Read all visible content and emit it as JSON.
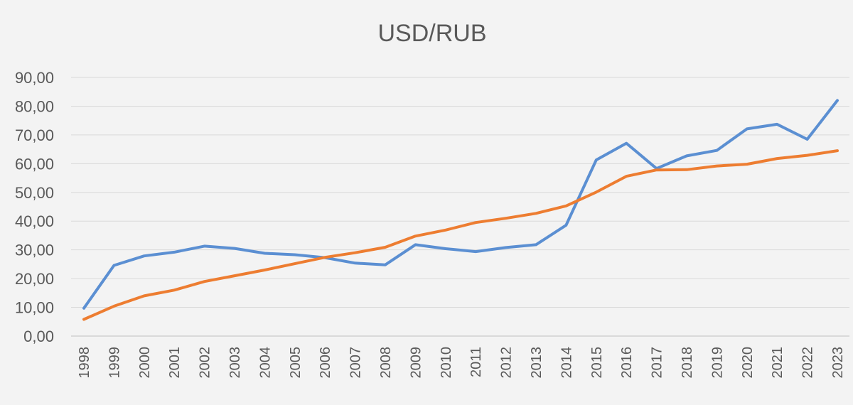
{
  "chart_data": {
    "type": "line",
    "title": "USD/RUB",
    "xlabel": "",
    "ylabel": "",
    "ylim": [
      0,
      90
    ],
    "ytick_step": 10,
    "ytick_labels": [
      "0,00",
      "10,00",
      "20,00",
      "30,00",
      "40,00",
      "50,00",
      "60,00",
      "70,00",
      "80,00",
      "90,00"
    ],
    "grid": true,
    "legend": "none",
    "categories": [
      "1998",
      "1999",
      "2000",
      "2001",
      "2002",
      "2003",
      "2004",
      "2005",
      "2006",
      "2007",
      "2008",
      "2009",
      "2010",
      "2011",
      "2012",
      "2013",
      "2014",
      "2015",
      "2016",
      "2017",
      "2018",
      "2019",
      "2020",
      "2021",
      "2022",
      "2023"
    ],
    "series": [
      {
        "color": "#5b8fd2",
        "values": [
          9.7,
          24.6,
          27.9,
          29.2,
          31.3,
          30.5,
          28.8,
          28.3,
          27.3,
          25.4,
          24.8,
          31.8,
          30.4,
          29.4,
          30.8,
          31.8,
          38.6,
          61.3,
          67.1,
          58.3,
          62.7,
          64.6,
          72.1,
          73.7,
          68.5,
          82.0
        ]
      },
      {
        "color": "#ed7d31",
        "values": [
          5.8,
          10.4,
          14.0,
          16.0,
          19.0,
          21.0,
          23.0,
          25.2,
          27.4,
          29.0,
          30.9,
          34.8,
          36.9,
          39.5,
          41.0,
          42.7,
          45.3,
          50.1,
          55.6,
          57.8,
          57.9,
          59.2,
          59.8,
          61.8,
          62.9,
          64.5
        ]
      }
    ]
  }
}
